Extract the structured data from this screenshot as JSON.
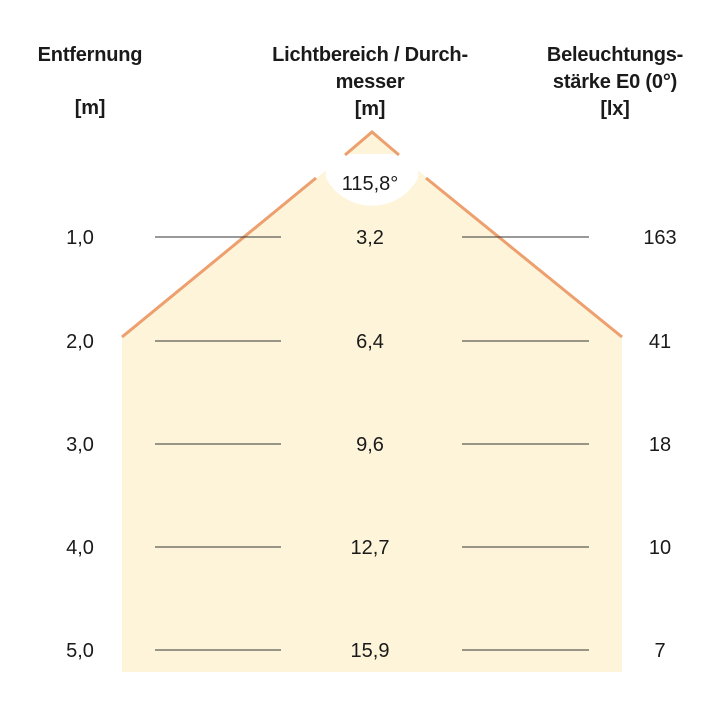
{
  "headers": {
    "distance": {
      "line1": "Entfernung",
      "unit": "[m]"
    },
    "diameter": {
      "line1": "Lichtbereich / Durch-",
      "line2": "messer",
      "unit": "[m]"
    },
    "illuminance": {
      "line1": "Beleuchtungs-",
      "line2": "stärke E0 (0°)",
      "unit": "[lx]"
    }
  },
  "beam_angle": "115,8°",
  "rows": [
    {
      "distance": "1,0",
      "diameter": "3,2",
      "lux": "163"
    },
    {
      "distance": "2,0",
      "diameter": "6,4",
      "lux": "41"
    },
    {
      "distance": "3,0",
      "diameter": "9,6",
      "lux": "18"
    },
    {
      "distance": "4,0",
      "diameter": "12,7",
      "lux": "10"
    },
    {
      "distance": "5,0",
      "diameter": "15,9",
      "lux": "7"
    }
  ],
  "colors": {
    "beam_fill": "#fdf4d9",
    "beam_edge": "#ed9f6e",
    "rule": "#333333"
  }
}
